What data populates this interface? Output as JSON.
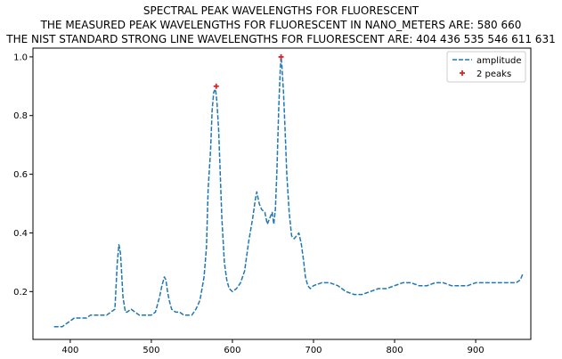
{
  "chart_data": {
    "type": "line",
    "title": "SPECTRAL PEAK WAVELENGTHS FOR FLUORESCENT",
    "subtitle_lines": [
      "THE MEASURED PEAK WAVELENGTHS FOR FLUORESCENT IN NANO_METERS ARE: 580 660",
      "THE NIST STANDARD STRONG LINE WAVELENGTHS FOR FLUORESCENT ARE: 404 436 535 546 611 631"
    ],
    "xlabel": "",
    "ylabel": "",
    "xlim": [
      354,
      968
    ],
    "ylim": [
      0.037,
      1.03
    ],
    "xticks": [
      400,
      500,
      600,
      700,
      800,
      900
    ],
    "yticks": [
      0.2,
      0.4,
      0.6,
      0.8,
      1.0
    ],
    "ytick_labels": [
      "0.2",
      "0.4",
      "0.6",
      "0.8",
      "1.0"
    ],
    "grid": false,
    "legend_position": "top-right",
    "series": [
      {
        "name": "amplitude",
        "style": "dashed",
        "color": "#1f77b4",
        "x": [
          380,
          385,
          390,
          395,
          400,
          405,
          410,
          415,
          420,
          425,
          430,
          435,
          440,
          445,
          450,
          455,
          458,
          460,
          462,
          465,
          468,
          470,
          475,
          480,
          485,
          490,
          495,
          500,
          505,
          510,
          513,
          516,
          518,
          520,
          522,
          525,
          530,
          535,
          540,
          545,
          550,
          555,
          560,
          565,
          568,
          570,
          573,
          575,
          577,
          579,
          580,
          581,
          583,
          585,
          587,
          590,
          593,
          596,
          600,
          605,
          610,
          615,
          620,
          625,
          628,
          630,
          633,
          636,
          640,
          643,
          646,
          649,
          651,
          653,
          655,
          657,
          659,
          660,
          661,
          663,
          665,
          667,
          670,
          673,
          676,
          679,
          682,
          685,
          688,
          690,
          693,
          696,
          700,
          710,
          720,
          730,
          740,
          750,
          760,
          770,
          780,
          790,
          800,
          810,
          820,
          830,
          840,
          850,
          860,
          870,
          880,
          890,
          900,
          910,
          920,
          930,
          940,
          950,
          955,
          958
        ],
        "y": [
          0.08,
          0.08,
          0.08,
          0.09,
          0.1,
          0.11,
          0.11,
          0.11,
          0.11,
          0.12,
          0.12,
          0.12,
          0.12,
          0.12,
          0.13,
          0.14,
          0.3,
          0.36,
          0.33,
          0.18,
          0.13,
          0.13,
          0.14,
          0.13,
          0.12,
          0.12,
          0.12,
          0.12,
          0.13,
          0.18,
          0.22,
          0.25,
          0.24,
          0.2,
          0.17,
          0.14,
          0.13,
          0.13,
          0.12,
          0.12,
          0.12,
          0.14,
          0.17,
          0.25,
          0.35,
          0.55,
          0.68,
          0.82,
          0.88,
          0.89,
          0.87,
          0.84,
          0.75,
          0.6,
          0.45,
          0.3,
          0.24,
          0.21,
          0.2,
          0.21,
          0.23,
          0.27,
          0.37,
          0.45,
          0.51,
          0.54,
          0.5,
          0.48,
          0.47,
          0.43,
          0.45,
          0.47,
          0.43,
          0.48,
          0.62,
          0.82,
          0.96,
          1.0,
          0.97,
          0.88,
          0.75,
          0.6,
          0.47,
          0.39,
          0.38,
          0.39,
          0.4,
          0.36,
          0.3,
          0.25,
          0.22,
          0.21,
          0.22,
          0.23,
          0.23,
          0.22,
          0.2,
          0.19,
          0.19,
          0.2,
          0.21,
          0.21,
          0.22,
          0.23,
          0.23,
          0.22,
          0.22,
          0.23,
          0.23,
          0.22,
          0.22,
          0.22,
          0.23,
          0.23,
          0.23,
          0.23,
          0.23,
          0.23,
          0.24,
          0.26
        ]
      },
      {
        "name": "2 peaks",
        "style": "markers",
        "marker": "+",
        "color": "#d62728",
        "x": [
          580,
          660
        ],
        "y": [
          0.9,
          1.0
        ]
      }
    ]
  }
}
